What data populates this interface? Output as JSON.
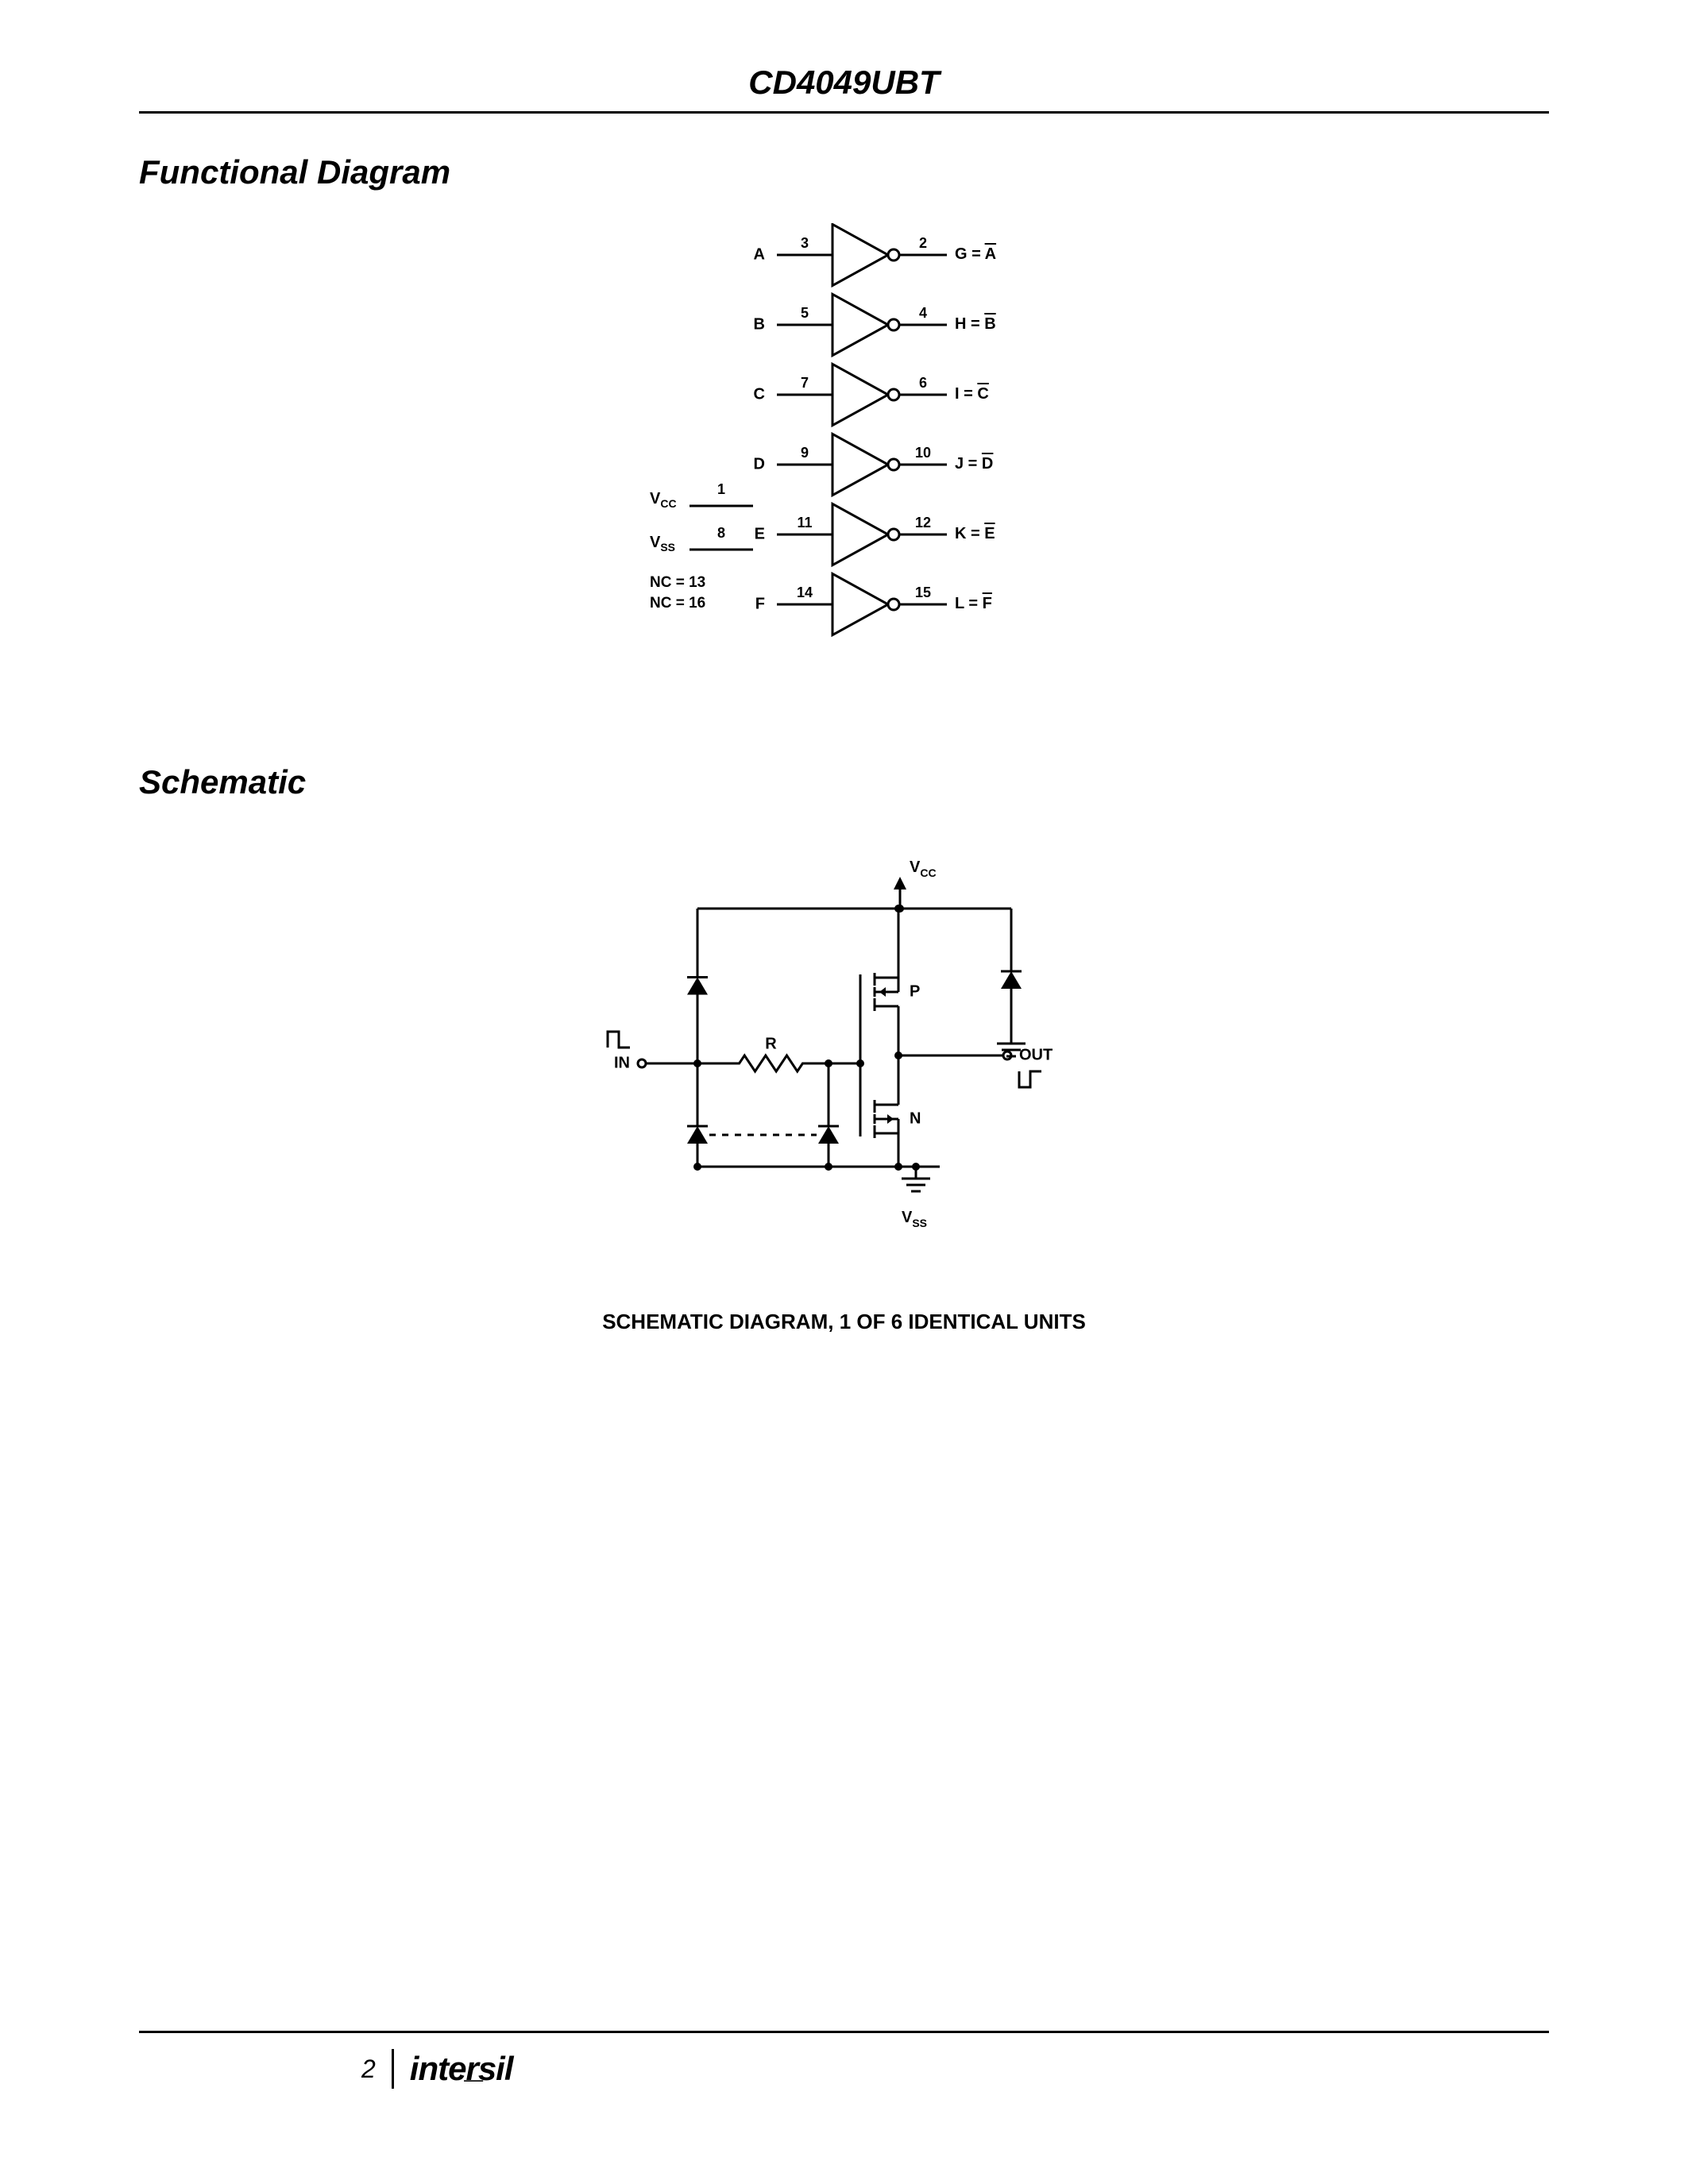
{
  "header": {
    "title": "CD4049UBT"
  },
  "sections": {
    "functional": "Functional Diagram",
    "schematic": "Schematic"
  },
  "functional_diagram": {
    "stroke": "#000000",
    "stroke_width": 3,
    "font_size_label": 20,
    "font_size_pin": 18,
    "gates": [
      {
        "in_label": "A",
        "in_pin": "3",
        "out_pin": "2",
        "out_sym": "G",
        "out_bar": "A"
      },
      {
        "in_label": "B",
        "in_pin": "5",
        "out_pin": "4",
        "out_sym": "H",
        "out_bar": "B"
      },
      {
        "in_label": "C",
        "in_pin": "7",
        "out_pin": "6",
        "out_sym": "I",
        "out_bar": "C"
      },
      {
        "in_label": "D",
        "in_pin": "9",
        "out_pin": "10",
        "out_sym": "J",
        "out_bar": "D"
      },
      {
        "in_label": "E",
        "in_pin": "11",
        "out_pin": "12",
        "out_sym": "K",
        "out_bar": "E"
      },
      {
        "in_label": "F",
        "in_pin": "14",
        "out_pin": "15",
        "out_sym": "L",
        "out_bar": "F"
      }
    ],
    "power": {
      "vcc": {
        "label": "V",
        "sub": "CC",
        "pin": "1"
      },
      "vss": {
        "label": "V",
        "sub": "SS",
        "pin": "8"
      },
      "nc": [
        "NC = 13",
        "NC = 16"
      ]
    }
  },
  "schematic": {
    "stroke": "#000000",
    "stroke_width": 3,
    "vcc": {
      "label": "V",
      "sub": "CC"
    },
    "vss": {
      "label": "V",
      "sub": "SS"
    },
    "in_label": "IN",
    "out_label": "OUT",
    "r_label": "R",
    "p_label": "P",
    "n_label": "N",
    "caption": "SCHEMATIC DIAGRAM, 1 OF 6 IDENTICAL UNITS"
  },
  "footer": {
    "page": "2",
    "logo": "intersil"
  }
}
